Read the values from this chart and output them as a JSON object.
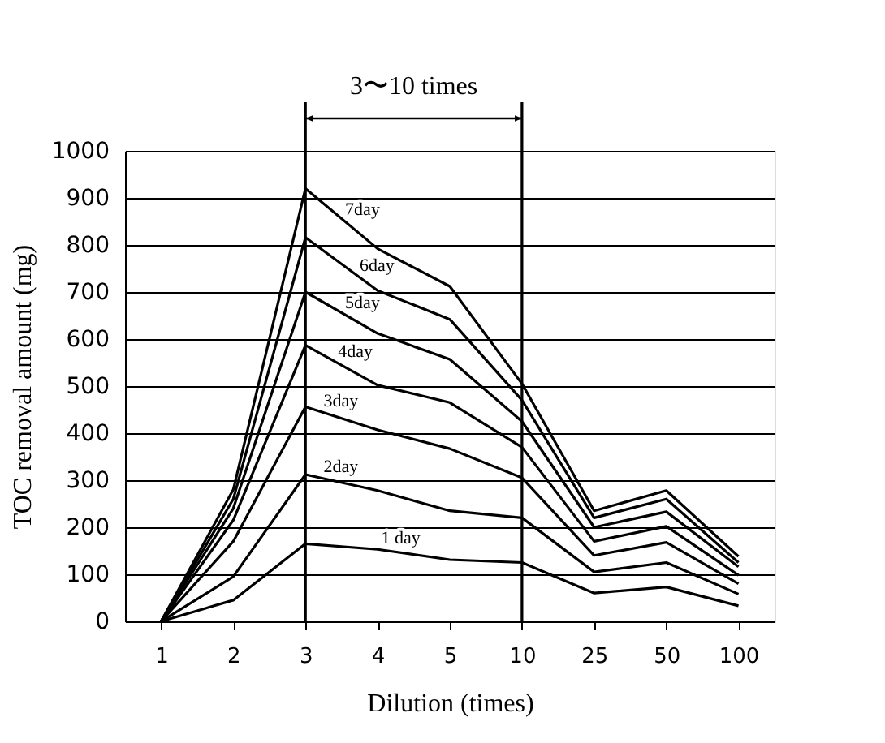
{
  "chart_data": {
    "type": "line",
    "xlabel": "Dilution (times)",
    "ylabel": "TOC removal amount (mg)",
    "categories": [
      "1",
      "2",
      "3",
      "4",
      "5",
      "10",
      "25",
      "50",
      "100"
    ],
    "series": [
      {
        "name": "7day",
        "color": "#000000",
        "values": [
          0,
          280,
          920,
          792,
          712,
          505,
          235,
          278,
          138
        ]
      },
      {
        "name": "6day",
        "color": "#000000",
        "values": [
          0,
          260,
          816,
          703,
          642,
          470,
          220,
          260,
          125
        ]
      },
      {
        "name": "5day",
        "color": "#000000",
        "values": [
          0,
          240,
          700,
          612,
          557,
          425,
          200,
          233,
          116
        ]
      },
      {
        "name": "4day",
        "color": "#000000",
        "values": [
          0,
          215,
          587,
          502,
          465,
          370,
          170,
          202,
          98
        ]
      },
      {
        "name": "3day",
        "color": "#000000",
        "values": [
          0,
          170,
          456,
          407,
          367,
          305,
          140,
          168,
          80
        ]
      },
      {
        "name": "2day",
        "color": "#000000",
        "values": [
          0,
          95,
          312,
          278,
          235,
          220,
          105,
          125,
          58
        ]
      },
      {
        "name": "1 day",
        "color": "#000000",
        "values": [
          0,
          45,
          165,
          153,
          131,
          125,
          60,
          73,
          33
        ]
      }
    ],
    "ylim": [
      0,
      1000
    ],
    "yticks": [
      0,
      100,
      200,
      300,
      400,
      500,
      600,
      700,
      800,
      900,
      {
        "value": 1000,
        "label": "1000"
      }
    ],
    "grid": "y",
    "legend": false,
    "marker": "none",
    "line_style": "solid",
    "ref_lines": [
      {
        "axis": "x",
        "value": "3",
        "color": "#000000"
      },
      {
        "axis": "x",
        "value": "10",
        "color": "#000000"
      }
    ],
    "annotations": [
      "3〜10 times"
    ]
  }
}
